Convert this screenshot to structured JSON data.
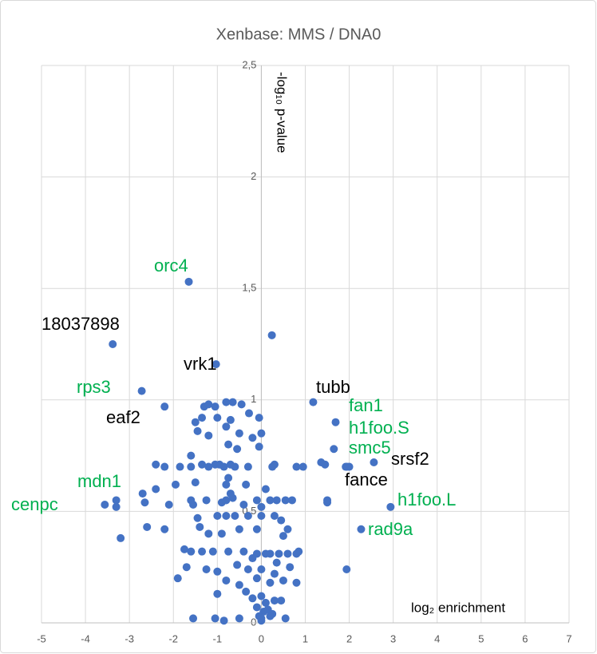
{
  "chart_data": {
    "type": "scatter",
    "title": "Xenbase: MMS / DNA0",
    "x_label": "log₂ enrichment",
    "y_label": "-log₁₀ p-value",
    "color": "#4472c4",
    "grid": true,
    "xlim": [
      -5,
      7
    ],
    "xticks": [
      -5,
      -4,
      -3,
      -2,
      -1,
      0,
      1,
      2,
      3,
      4,
      5,
      6,
      7
    ],
    "ylim": [
      0,
      2.5
    ],
    "yticks": [
      0,
      {
        "value": 0.5,
        "label": "0,5"
      },
      1,
      {
        "value": 1.5,
        "label": "1,5"
      },
      2,
      {
        "value": 2.5,
        "label": "2,5"
      }
    ],
    "annotations": [
      {
        "text": "orc4",
        "color": "#00b050"
      },
      {
        "text": "18037898",
        "color": "#000000"
      },
      {
        "text": "vrk1",
        "color": "#000000"
      },
      {
        "text": "rps3",
        "color": "#00b050"
      },
      {
        "text": "tubb",
        "color": "#000000"
      },
      {
        "text": "eaf2",
        "color": "#000000"
      },
      {
        "text": "fan1",
        "color": "#00b050"
      },
      {
        "text": "h1foo.S",
        "color": "#00b050"
      },
      {
        "text": "smc5",
        "color": "#00b050"
      },
      {
        "text": "srsf2",
        "color": "#000000"
      },
      {
        "text": "fance",
        "color": "#000000"
      },
      {
        "text": "mdn1",
        "color": "#00b050"
      },
      {
        "text": "cenpc",
        "color": "#00b050"
      },
      {
        "text": "h1foo.L",
        "color": "#00b050"
      },
      {
        "text": "rad9a",
        "color": "#00b050"
      }
    ],
    "x": [
      -1.65,
      -3.38,
      -1.03,
      0.24,
      -2.72,
      -2.2,
      1.18,
      1.69,
      1.65,
      1.36,
      2.56,
      1.92,
      2.94,
      2.27,
      -3.56,
      -2.65,
      1.94,
      -1.3,
      -1.2,
      -1.05,
      -0.8,
      -0.65,
      -0.45,
      -0.28,
      -1.35,
      -1.5,
      -1.0,
      -0.7,
      -0.05,
      -1.45,
      -1.2,
      -0.8,
      -0.5,
      0.0,
      -0.2,
      -1.6,
      -0.55,
      -0.75,
      -0.05,
      -2.4,
      -2.2,
      -1.85,
      -1.6,
      -1.35,
      -1.2,
      -1.05,
      -0.95,
      -0.85,
      -0.7,
      -0.6,
      -0.3,
      0.25,
      0.3,
      0.8,
      0.95,
      1.45,
      1.95,
      2.0,
      -1.95,
      -1.5,
      -0.8,
      -0.75,
      -0.35,
      0.1,
      -0.7,
      0.2,
      0.35,
      0.55,
      0.7,
      1.5,
      1.5,
      -3.3,
      -3.3,
      -2.4,
      -2.7,
      -2.1,
      -1.6,
      -1.55,
      -1.25,
      -0.9,
      -0.8,
      -0.65,
      -0.4,
      0.0,
      -0.1,
      -2.6,
      -2.2,
      -1.45,
      -1.0,
      -0.8,
      -0.6,
      -0.3,
      0.0,
      0.3,
      0.45,
      0.6,
      0.5,
      -1.4,
      -1.2,
      -0.9,
      -0.5,
      -0.1,
      -3.2,
      -1.75,
      -1.6,
      -1.35,
      -1.1,
      -0.75,
      -0.4,
      0.1,
      0.2,
      0.4,
      0.6,
      0.8,
      0.85,
      -0.1,
      -0.2,
      -1.7,
      -1.25,
      -1.0,
      -0.55,
      -0.3,
      0.0,
      0.35,
      0.65,
      0.3,
      -1.9,
      -0.8,
      -0.5,
      -0.1,
      0.2,
      0.5,
      0.8,
      -1.0,
      -0.35,
      -0.2,
      0.0,
      0.1,
      0.3,
      0.45,
      -0.1,
      0.05,
      -0.05,
      0.0,
      0.15,
      0.25,
      -1.55,
      -1.05,
      -0.85,
      -0.5,
      0.0,
      0.55,
      0.2
    ],
    "values": [
      1.53,
      1.25,
      1.16,
      1.29,
      1.04,
      0.97,
      0.99,
      0.9,
      0.78,
      0.72,
      0.72,
      0.7,
      0.52,
      0.42,
      0.53,
      0.54,
      0.24,
      0.97,
      0.98,
      0.97,
      0.99,
      0.99,
      0.98,
      0.94,
      0.92,
      0.9,
      0.92,
      0.91,
      0.92,
      0.86,
      0.84,
      0.88,
      0.85,
      0.85,
      0.83,
      0.75,
      0.78,
      0.8,
      0.79,
      0.71,
      0.7,
      0.7,
      0.7,
      0.71,
      0.7,
      0.71,
      0.71,
      0.7,
      0.71,
      0.7,
      0.7,
      0.7,
      0.71,
      0.7,
      0.7,
      0.71,
      0.7,
      0.7,
      0.62,
      0.63,
      0.62,
      0.65,
      0.62,
      0.6,
      0.58,
      0.55,
      0.55,
      0.55,
      0.55,
      0.55,
      0.54,
      0.55,
      0.52,
      0.6,
      0.58,
      0.53,
      0.55,
      0.53,
      0.55,
      0.54,
      0.55,
      0.56,
      0.53,
      0.52,
      0.55,
      0.43,
      0.42,
      0.47,
      0.48,
      0.48,
      0.48,
      0.48,
      0.48,
      0.48,
      0.46,
      0.42,
      0.39,
      0.43,
      0.4,
      0.4,
      0.42,
      0.42,
      0.38,
      0.33,
      0.32,
      0.32,
      0.32,
      0.32,
      0.32,
      0.31,
      0.31,
      0.31,
      0.31,
      0.31,
      0.32,
      0.31,
      0.29,
      0.25,
      0.24,
      0.23,
      0.26,
      0.24,
      0.24,
      0.27,
      0.25,
      0.22,
      0.2,
      0.19,
      0.17,
      0.2,
      0.18,
      0.19,
      0.18,
      0.13,
      0.14,
      0.11,
      0.12,
      0.09,
      0.1,
      0.1,
      0.07,
      0.05,
      0.03,
      0.02,
      0.06,
      0.04,
      0.02,
      0.02,
      0.01,
      0.02,
      0.01,
      0.02,
      0.03
    ]
  }
}
